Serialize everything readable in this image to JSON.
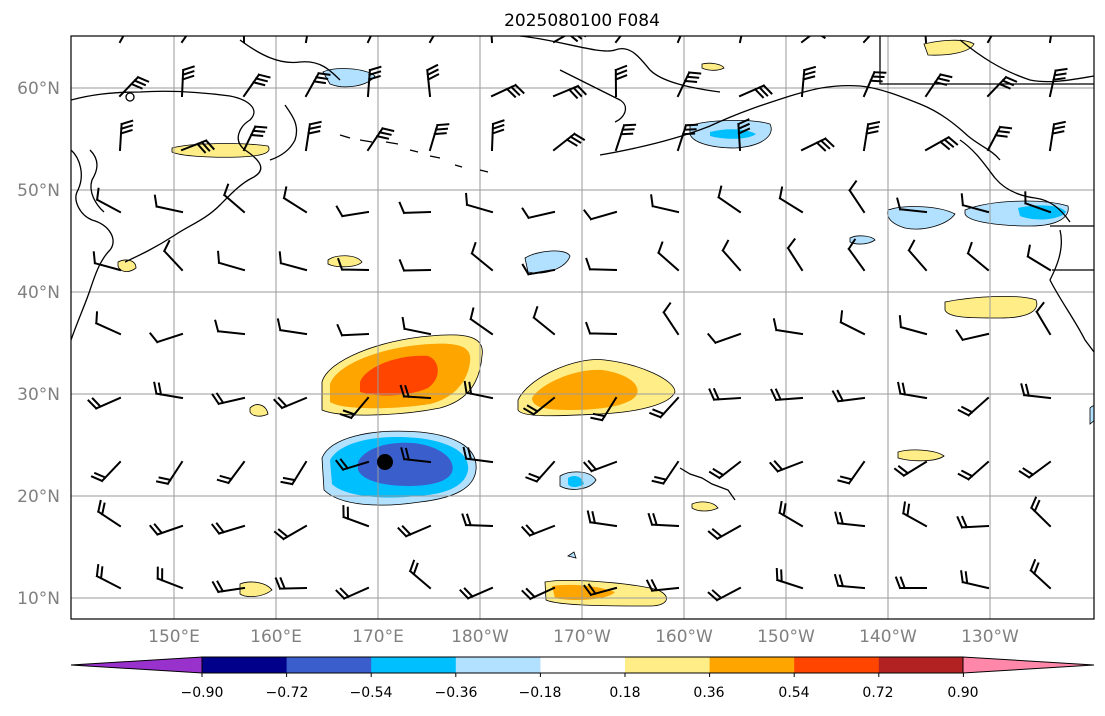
{
  "title": "2025080100 F084",
  "lat_labels": [
    "60°N",
    "50°N",
    "40°N",
    "30°N",
    "20°N",
    "10°N"
  ],
  "lon_labels": [
    "150°E",
    "160°E",
    "170°E",
    "180°W",
    "170°W",
    "160°W",
    "150°W",
    "140°W",
    "130°W"
  ],
  "colorbar": {
    "ticks": [
      "−0.90",
      "−0.72",
      "−0.54",
      "−0.36",
      "−0.18",
      "0.18",
      "0.36",
      "0.54",
      "0.72",
      "0.90"
    ],
    "colors": [
      "#9932cc",
      "#00008b",
      "#3a5fcd",
      "#00bfff",
      "#b2e0ff",
      "#ffffff",
      "#ffee88",
      "#ffa500",
      "#ff4500",
      "#b22222",
      "#ff88aa"
    ]
  },
  "storm_center_marker": "black-dot"
}
